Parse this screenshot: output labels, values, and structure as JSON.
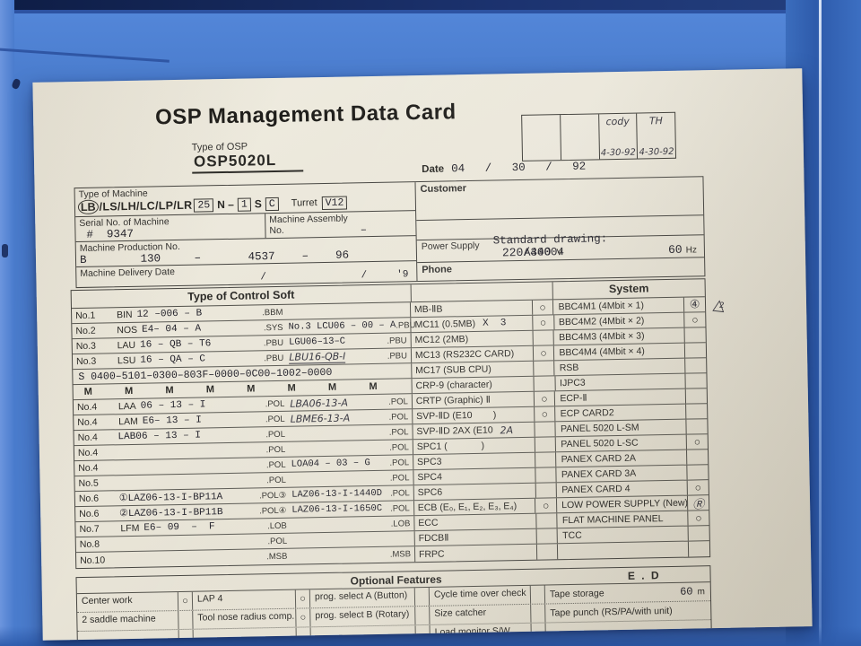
{
  "card": {
    "title": "OSP Management Data Card"
  },
  "colors": {
    "panel_blue": "#4a7ccd",
    "panel_dark": "#15265a",
    "card_paper": "#e9e5d8",
    "ink": "#2a2926"
  },
  "stamp": {
    "cells": [
      {
        "l1": "",
        "l2": ""
      },
      {
        "l1": "",
        "l2": ""
      },
      {
        "l1": "cody",
        "l2": "4-30-92"
      },
      {
        "l1": "TH",
        "l2": "4-30-92"
      }
    ]
  },
  "osp": {
    "label": "Type of OSP",
    "value": "OSP5020L"
  },
  "date": {
    "label": "Date",
    "value": "04   /   30   /   92"
  },
  "machine": {
    "type_label": "Type of Machine",
    "type_circled": "LB",
    "type_rest": "/LS/LH/LC/LP/LR",
    "box_a": "25",
    "mid_a": "N –",
    "box_b": "1",
    "mid_b": "S",
    "box_c": "C",
    "turret_label": "Turret",
    "turret_value": "V12",
    "serial_label": "Serial No. of Machine",
    "serial_value": "#  9347",
    "assembly_label1": "Machine Assembly",
    "assembly_label2": "No.",
    "assembly_value": "–",
    "production_label": "Machine Production No.",
    "production_value": "B        130     –       4537    –    96",
    "delivery_label": "Machine Delivery Date",
    "delivery_value": "/                /     '9",
    "customer_label": "Customer",
    "drawing_label": "Standard drawing:",
    "drawing_value": "A30004",
    "power_label": "Power Supply",
    "power_value": "220/440",
    "power_unit": "V",
    "freq_value": "60",
    "freq_unit": "Hz",
    "phone_label": "Phone"
  },
  "main": {
    "header_left": "Type of Control Soft",
    "header_right": "System",
    "rows": [
      {
        "no": "No.1",
        "p1": "BIN",
        "f1": "12 –006 – B",
        "s1": ".BBM",
        "f2": "",
        "s2": "",
        "mid": "MB-ⅡB",
        "midmark": "○",
        "sys": "BBC4M1 (4Mbit × 1)",
        "sysmark": "④",
        "sysmark_hw": true
      },
      {
        "no": "No.2",
        "p1": "NOS",
        "f1": "E4– 04 – A",
        "s1": ".SYS",
        "f2": "No.3 LCU06 – 00 – A",
        "s2": ".PBU",
        "mid": "MC11 (0.5MB)",
        "mid2": "X  3",
        "midmark": "○",
        "sys": "BBC4M2 (4Mbit × 2)",
        "sysmark": "○"
      },
      {
        "no": "No.3",
        "p1": "LAU",
        "f1": "16 – QB – T6",
        "s1": ".PBU",
        "f2": "LGU06–13–C",
        "s2": ".PBU",
        "mid": "MC12 (2MB)",
        "midmark": "",
        "sys": "BBC4M3 (4Mbit × 3)",
        "sysmark": ""
      },
      {
        "no": "No.3",
        "p1": "LSU",
        "f1": "16 – QA – C",
        "s1": ".PBU",
        "f2": "LBU16-QB-I",
        "f2hw": true,
        "f2u": true,
        "s2": ".PBU",
        "mid": "MC13 (RS232C CARD)",
        "midmark": "○",
        "sys": "BBC4M4 (4Mbit × 4)",
        "sysmark": ""
      },
      {
        "fullrow": "S 0400–5101–0300–803F–0000–0C00–1002–0000",
        "mid": "MC17 (SUB CPU)",
        "midmark": "",
        "sys": "RSB",
        "sysmark": ""
      },
      {
        "spread": "M M M M M M M M",
        "mid": "CRP-9 (character)",
        "midmark": "",
        "sys": "IJPC3",
        "sysmark": ""
      },
      {
        "no": "No.4",
        "p1": "LAA",
        "f1": "06 – 13 – I",
        "s1": ".POL",
        "f2": "LBA06-13-A",
        "f2hw": true,
        "s2": ".POL",
        "mid": "CRTP (Graphic) Ⅱ",
        "midmark": "○",
        "sys": "ECP-Ⅱ",
        "sysmark": ""
      },
      {
        "no": "No.4",
        "p1": "LAM",
        "f1": "E6– 13 – I",
        "s1": ".POL",
        "f2": "LBME6-13-A",
        "f2hw": true,
        "s2": ".POL",
        "mid": "SVP-ⅡD (E10        )",
        "midmark": "○",
        "sys": "ECP CARD2",
        "sysmark": ""
      },
      {
        "no": "No.4",
        "p1": "",
        "f1": "LAB06 – 13 – I",
        "s1": ".POL",
        "f2": "",
        "s2": ".POL",
        "mid": "SVP-ⅡD 2AX (E10",
        "mid2": "2A",
        "mid2hw": true,
        "midmark": "",
        "sys": "PANEL 5020 L-SM",
        "sysmark": ""
      },
      {
        "no": "No.4",
        "p1": "",
        "f1": "",
        "s1": ".POL",
        "f2": "",
        "s2": ".POL",
        "mid": "SPC1 (             )",
        "midmark": "",
        "sys": "PANEL 5020 L-SC",
        "sysmark": "○"
      },
      {
        "no": "No.4",
        "p1": "",
        "f1": "",
        "s1": ".POL",
        "f2": "LOA04 – 03 – G",
        "s2": ".POL",
        "mid": "SPC3",
        "midmark": "",
        "sys": "PANEX CARD 2A",
        "sysmark": ""
      },
      {
        "no": "No.5",
        "p1": "",
        "f1": "",
        "s1": ".POL",
        "f2": "",
        "s2": ".POL",
        "mid": "SPC4",
        "midmark": "",
        "sys": "PANEX CARD 3A",
        "sysmark": ""
      },
      {
        "no": "No.6",
        "p1": "",
        "f1": "①LAZ06-13-I-BP11A",
        "s1": ".POL③",
        "f2": "LAZ06-13-I-1440D",
        "s2": ".POL",
        "mid": "SPC6",
        "midmark": "",
        "sys": "PANEX CARD 4",
        "sysmark": "○"
      },
      {
        "no": "No.6",
        "p1": "",
        "f1": "②LAZ06-13-I-BP11B",
        "s1": ".POL④",
        "f2": "LAZ06-13-I-1650C",
        "s2": ".POL",
        "mid": "ECB (E₀, E₁, E₂, E₃, E₄)",
        "midmark": "○",
        "sys": "LOW POWER SUPPLY (New)",
        "sysmark": "Ⓡ",
        "sysmark_hw": true
      },
      {
        "no": "No.7",
        "p1": "LFM",
        "f1": "E6– 09  –  F",
        "s1": ".LOB",
        "f2": "",
        "s2": ".LOB",
        "mid": "ECC",
        "midmark": "",
        "sys": "FLAT MACHINE PANEL",
        "sysmark": "○"
      },
      {
        "no": "No.8",
        "p1": "",
        "f1": "",
        "s1": ".POL",
        "f2": "",
        "s2": "",
        "mid": "FDCBⅡ",
        "midmark": "",
        "sys": "TCC",
        "sysmark": ""
      },
      {
        "no": "No.10",
        "p1": "",
        "f1": "",
        "s1": ".MSB",
        "f2": "",
        "s2": ".MSB",
        "mid": "FRPC",
        "midmark": "",
        "sys": "",
        "sysmark": ""
      }
    ]
  },
  "marks": {
    "triangle_glyph": "△",
    "triangle_number": "2"
  },
  "optional": {
    "title": "Optional Features",
    "grade": "E  .  D",
    "rows": [
      {
        "cells": [
          {
            "t": "Center work",
            "m": "○"
          },
          {
            "t": "LAP 4",
            "m": "○"
          },
          {
            "t": "prog. select A (Button)",
            "m": ""
          },
          {
            "t": "Cycle time over check",
            "m": ""
          }
        ],
        "wide": "Tape storage",
        "wval": "60",
        "wunit": "m"
      },
      {
        "cells": [
          {
            "t": "2 saddle machine",
            "m": ""
          },
          {
            "t": "Tool nose radius comp.",
            "m": "○"
          },
          {
            "t": "prog. select B (Rotary)",
            "m": ""
          },
          {
            "t": "Size catcher",
            "m": ""
          }
        ],
        "wide": "Tape punch (RS/PA/with unit)",
        "wval": "",
        "wunit": ""
      },
      {
        "cells": [
          {
            "t": "",
            "m": ""
          },
          {
            "t": "",
            "m": ""
          },
          {
            "t": "",
            "m": ""
          },
          {
            "t": "Load monitor S/W",
            "m": ""
          }
        ],
        "wide": "",
        "wval": "",
        "wunit": "",
        "clipped": true
      }
    ]
  }
}
